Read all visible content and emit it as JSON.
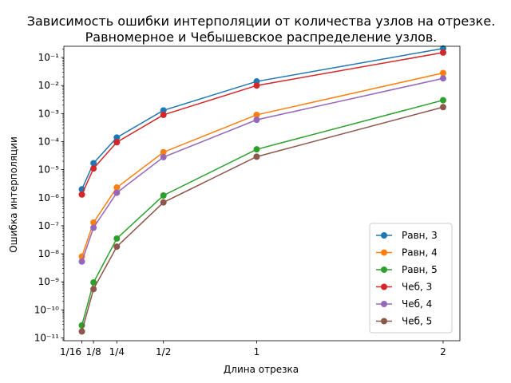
{
  "chart_data": {
    "type": "line",
    "title_lines": [
      "Зависимость ошибки интерполяции от количества узлов на отрезке.",
      "Равномерное и Чебышевское распределение узлов."
    ],
    "xlabel": "Длина отрезка",
    "ylabel": "Ошибка интерполяции",
    "xscale": "linear",
    "yscale": "log",
    "xlim": [
      -0.034,
      2.09
    ],
    "ylim_exp": [
      -11.1,
      -0.6
    ],
    "x_ticks": [
      {
        "value": 0.0625,
        "label": "1/16"
      },
      {
        "value": 0.125,
        "label": "1/8"
      },
      {
        "value": 0.25,
        "label": "1/4"
      },
      {
        "value": 0.5,
        "label": "1/2"
      },
      {
        "value": 1,
        "label": "1"
      },
      {
        "value": 2,
        "label": "2"
      }
    ],
    "y_ticks": [
      {
        "exp": -11,
        "label": "10⁻¹¹"
      },
      {
        "exp": -10,
        "label": "10⁻¹⁰"
      },
      {
        "exp": -9,
        "label": "10⁻⁹"
      },
      {
        "exp": -8,
        "label": "10⁻⁸"
      },
      {
        "exp": -7,
        "label": "10⁻⁷"
      },
      {
        "exp": -6,
        "label": "10⁻⁶"
      },
      {
        "exp": -5,
        "label": "10⁻⁵"
      },
      {
        "exp": -4,
        "label": "10⁻⁴"
      },
      {
        "exp": -3,
        "label": "10⁻³"
      },
      {
        "exp": -2,
        "label": "10⁻²"
      },
      {
        "exp": -1,
        "label": "10⁻¹"
      }
    ],
    "x": [
      0.0625,
      0.125,
      0.25,
      0.5,
      1,
      2
    ],
    "series": [
      {
        "name": "Равн, 3",
        "color": "#1f77b4",
        "values": [
          2e-06,
          1.7e-05,
          0.00014,
          0.0013,
          0.014,
          0.21
        ]
      },
      {
        "name": "Равн, 4",
        "color": "#ff7f0e",
        "values": [
          8e-09,
          1.3e-07,
          2.3e-06,
          4.2e-05,
          0.0009,
          0.028
        ]
      },
      {
        "name": "Равн, 5",
        "color": "#2ca02c",
        "values": [
          2.8e-11,
          9.5e-10,
          3.5e-08,
          1.2e-06,
          5.3e-05,
          0.003
        ]
      },
      {
        "name": "Чеб, 3",
        "color": "#d62728",
        "values": [
          1.3e-06,
          1.1e-05,
          9.5e-05,
          0.0009,
          0.01,
          0.15
        ]
      },
      {
        "name": "Чеб, 4",
        "color": "#9467bd",
        "values": [
          5.3e-09,
          8.5e-08,
          1.5e-06,
          2.8e-05,
          0.0006,
          0.018
        ]
      },
      {
        "name": "Чеб, 5",
        "color": "#8c564b",
        "values": [
          1.7e-11,
          5.5e-10,
          1.8e-08,
          6.8e-07,
          2.9e-05,
          0.0017
        ]
      }
    ],
    "legend_position": "lower-right",
    "grid": false
  }
}
